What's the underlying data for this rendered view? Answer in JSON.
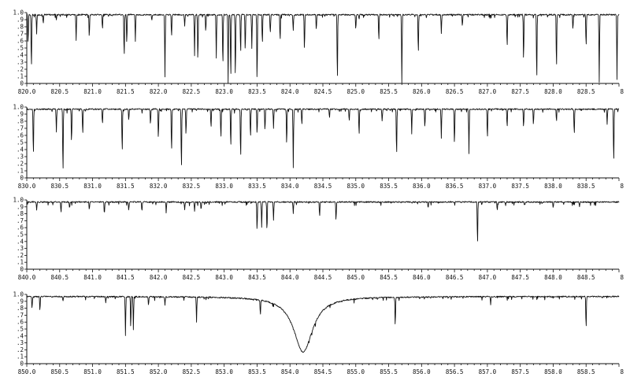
{
  "chart_data": [
    {
      "type": "line",
      "x_tick_labels": [
        "820.0",
        "820.5",
        "821.0",
        "821.5",
        "822.0",
        "822.5",
        "823.0",
        "823.5",
        "824.0",
        "824.5",
        "825.0",
        "825.5",
        "826.0",
        "826.5",
        "827.0",
        "827.5",
        "828.0",
        "828.5",
        "8"
      ],
      "y_tick_labels": [
        "1.0",
        ".9",
        ".8",
        ".7",
        ".6",
        ".5",
        ".4",
        ".3",
        ".2",
        ".1",
        "0"
      ],
      "xlim": [
        820.0,
        829.0
      ],
      "ylim": [
        0.0,
        1.0
      ],
      "continuum": 0.97,
      "lines": [
        [
          820.02,
          0.55
        ],
        [
          820.07,
          0.2
        ],
        [
          820.15,
          0.7
        ],
        [
          820.25,
          0.85
        ],
        [
          820.45,
          0.9
        ],
        [
          820.75,
          0.6
        ],
        [
          820.95,
          0.65
        ],
        [
          821.15,
          0.75
        ],
        [
          821.48,
          0.35
        ],
        [
          821.52,
          0.55
        ],
        [
          821.65,
          0.6
        ],
        [
          821.9,
          0.88
        ],
        [
          822.1,
          0.1
        ],
        [
          822.2,
          0.65
        ],
        [
          822.4,
          0.8
        ],
        [
          822.55,
          0.4
        ],
        [
          822.6,
          0.3
        ],
        [
          822.72,
          0.72
        ],
        [
          822.88,
          0.35
        ],
        [
          822.98,
          0.25
        ],
        [
          823.06,
          0.0
        ],
        [
          823.1,
          0.05
        ],
        [
          823.17,
          0.05
        ],
        [
          823.25,
          0.4
        ],
        [
          823.32,
          0.45
        ],
        [
          823.42,
          0.5
        ],
        [
          823.5,
          0.0
        ],
        [
          823.58,
          0.55
        ],
        [
          823.7,
          0.7
        ],
        [
          823.85,
          0.6
        ],
        [
          824.05,
          0.75
        ],
        [
          824.22,
          0.45
        ],
        [
          824.4,
          0.75
        ],
        [
          824.72,
          0.02
        ],
        [
          825.0,
          0.75
        ],
        [
          825.05,
          0.9
        ],
        [
          825.35,
          0.6
        ],
        [
          825.7,
          0.02
        ],
        [
          825.95,
          0.4
        ],
        [
          826.3,
          0.7
        ],
        [
          826.62,
          0.8
        ],
        [
          827.3,
          0.5
        ],
        [
          827.55,
          0.3
        ],
        [
          827.75,
          0.02
        ],
        [
          828.05,
          0.2
        ],
        [
          828.3,
          0.75
        ],
        [
          828.5,
          0.5
        ],
        [
          828.7,
          0.02
        ],
        [
          828.97,
          0.05
        ]
      ]
    },
    {
      "type": "line",
      "x_tick_labels": [
        "830.0",
        "830.5",
        "831.0",
        "831.5",
        "832.0",
        "832.5",
        "833.0",
        "833.5",
        "834.0",
        "834.5",
        "835.0",
        "835.5",
        "836.0",
        "836.5",
        "837.0",
        "837.5",
        "838.0",
        "838.5",
        "8"
      ],
      "y_tick_labels": [
        "1.0",
        ".9",
        ".8",
        ".7",
        ".6",
        ".5",
        ".4",
        ".3",
        ".2",
        ".1",
        "0"
      ],
      "xlim": [
        830.0,
        839.0
      ],
      "ylim": [
        0.0,
        1.0
      ],
      "continuum": 0.97,
      "lines": [
        [
          830.1,
          0.3
        ],
        [
          830.45,
          0.65
        ],
        [
          830.55,
          0.05
        ],
        [
          830.68,
          0.5
        ],
        [
          830.85,
          0.6
        ],
        [
          831.15,
          0.75
        ],
        [
          831.45,
          0.35
        ],
        [
          831.55,
          0.8
        ],
        [
          831.88,
          0.75
        ],
        [
          832.0,
          0.55
        ],
        [
          832.2,
          0.35
        ],
        [
          832.35,
          0.1
        ],
        [
          832.42,
          0.6
        ],
        [
          832.8,
          0.7
        ],
        [
          832.95,
          0.55
        ],
        [
          833.1,
          0.42
        ],
        [
          833.25,
          0.25
        ],
        [
          833.4,
          0.55
        ],
        [
          833.5,
          0.6
        ],
        [
          833.62,
          0.65
        ],
        [
          833.75,
          0.7
        ],
        [
          833.95,
          0.45
        ],
        [
          834.05,
          0.15
        ],
        [
          834.18,
          0.75
        ],
        [
          834.6,
          0.85
        ],
        [
          834.9,
          0.8
        ],
        [
          835.05,
          0.6
        ],
        [
          835.4,
          0.8
        ],
        [
          835.62,
          0.3
        ],
        [
          835.85,
          0.65
        ],
        [
          836.05,
          0.7
        ],
        [
          836.3,
          0.55
        ],
        [
          836.5,
          0.45
        ],
        [
          836.72,
          0.35
        ],
        [
          837.0,
          0.55
        ],
        [
          837.3,
          0.7
        ],
        [
          837.55,
          0.7
        ],
        [
          837.7,
          0.75
        ],
        [
          838.05,
          0.8
        ],
        [
          838.32,
          0.6
        ],
        [
          838.82,
          0.75
        ],
        [
          838.92,
          0.2
        ]
      ]
    },
    {
      "type": "line",
      "x_tick_labels": [
        "840.0",
        "840.5",
        "841.0",
        "841.5",
        "842.0",
        "842.5",
        "843.0",
        "843.5",
        "844.0",
        "844.5",
        "845.0",
        "845.5",
        "846.0",
        "846.5",
        "847.0",
        "847.5",
        "848.0",
        "848.5",
        "8"
      ],
      "y_tick_labels": [
        "1.0",
        ".9",
        ".8",
        ".7",
        ".6",
        ".5",
        ".4",
        ".3",
        ".2",
        ".1",
        "0"
      ],
      "xlim": [
        840.0,
        849.0
      ],
      "ylim": [
        0.0,
        1.0
      ],
      "continuum": 0.97,
      "lines": [
        [
          840.15,
          0.85
        ],
        [
          840.52,
          0.82
        ],
        [
          840.65,
          0.88
        ],
        [
          840.95,
          0.85
        ],
        [
          841.18,
          0.8
        ],
        [
          841.55,
          0.85
        ],
        [
          841.75,
          0.83
        ],
        [
          842.12,
          0.85
        ],
        [
          842.4,
          0.85
        ],
        [
          842.55,
          0.83
        ],
        [
          842.65,
          0.88
        ],
        [
          843.5,
          0.55
        ],
        [
          843.57,
          0.6
        ],
        [
          843.65,
          0.55
        ],
        [
          843.75,
          0.7
        ],
        [
          844.05,
          0.8
        ],
        [
          844.45,
          0.75
        ],
        [
          844.7,
          0.7
        ],
        [
          846.1,
          0.88
        ],
        [
          846.85,
          0.35
        ],
        [
          847.15,
          0.85
        ],
        [
          848.0,
          0.88
        ],
        [
          848.4,
          0.9
        ]
      ]
    },
    {
      "type": "line",
      "x_tick_labels": [
        "850.0",
        "850.5",
        "851.0",
        "851.5",
        "852.0",
        "852.5",
        "853.0",
        "853.5",
        "854.0",
        "854.5",
        "855.0",
        "855.5",
        "856.0",
        "856.5",
        "857.0",
        "857.5",
        "858.0",
        "858.5",
        "8"
      ],
      "y_tick_labels": [
        "1.0",
        ".9",
        ".8",
        ".7",
        ".6",
        ".5",
        ".4",
        ".3",
        ".2",
        ".1",
        "0"
      ],
      "xlim": [
        850.0,
        859.0
      ],
      "ylim": [
        0.0,
        1.0
      ],
      "continuum": 0.97,
      "broad_line": [
        854.2,
        0.17,
        0.55
      ],
      "lines": [
        [
          850.08,
          0.8
        ],
        [
          850.2,
          0.75
        ],
        [
          850.55,
          0.9
        ],
        [
          851.2,
          0.88
        ],
        [
          851.5,
          0.4
        ],
        [
          851.58,
          0.5
        ],
        [
          851.62,
          0.5
        ],
        [
          851.85,
          0.85
        ],
        [
          852.1,
          0.85
        ],
        [
          852.58,
          0.6
        ],
        [
          853.55,
          0.75
        ],
        [
          855.6,
          0.55
        ],
        [
          857.05,
          0.85
        ],
        [
          858.5,
          0.5
        ]
      ]
    }
  ]
}
